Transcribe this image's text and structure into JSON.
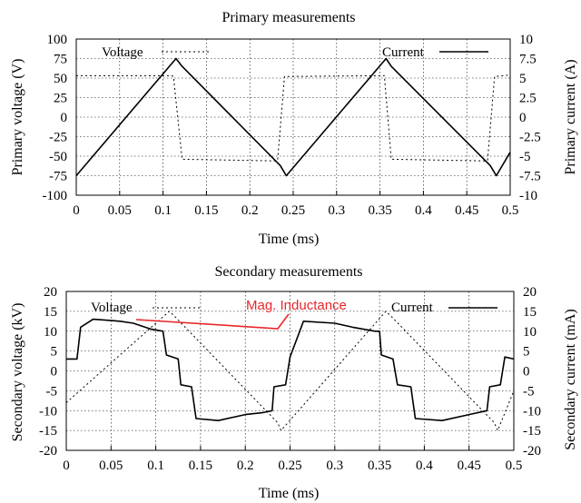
{
  "chart_data": [
    {
      "type": "line",
      "title": "Primary measurements",
      "xlabel": "Time (ms)",
      "ylabel": "Primary voltage (V)",
      "y2label": "Primary current (A)",
      "xlim": [
        0,
        0.5
      ],
      "ylim": [
        -100,
        100
      ],
      "y2lim": [
        -10,
        10
      ],
      "grid": true,
      "xticks": [
        "0",
        "0.05",
        "0.1",
        "0.15",
        "0.2",
        "0.25",
        "0.3",
        "0.35",
        "0.4",
        "0.45",
        "0.5"
      ],
      "yticks": [
        "100",
        "75",
        "50",
        "25",
        "0",
        "-25",
        "-50",
        "-75",
        "-100"
      ],
      "y2ticks": [
        "10",
        "7.5",
        "5",
        "2.5",
        "0",
        "-2.5",
        "-5",
        "-7.5",
        "-10"
      ],
      "legend_voltage": "Voltage",
      "legend_current": "Current",
      "series": [
        {
          "name": "Voltage",
          "axis": "left",
          "style": "dotted",
          "x": [
            0,
            0.11,
            0.112,
            0.122,
            0.229,
            0.232,
            0.24,
            0.352,
            0.355,
            0.363,
            0.47,
            0.474,
            0.482,
            0.5
          ],
          "y": [
            53,
            53,
            52,
            -54,
            -56,
            -55,
            52,
            53,
            53,
            -54,
            -56,
            -55,
            52,
            54
          ]
        },
        {
          "name": "Current",
          "axis": "right",
          "style": "solid",
          "x": [
            0,
            0.115,
            0.122,
            0.235,
            0.242,
            0.357,
            0.363,
            0.477,
            0.484,
            0.5
          ],
          "y": [
            -7.5,
            7.5,
            6.5,
            -6.2,
            -7.5,
            7.5,
            6.5,
            -6.2,
            -7.5,
            -4.5
          ]
        }
      ]
    },
    {
      "type": "line",
      "title": "Secondary measurements",
      "xlabel": "Time (ms)",
      "ylabel": "Secondary voltage (kV)",
      "y2label": "Secondary current (mA)",
      "xlim": [
        0,
        0.5
      ],
      "ylim": [
        -20,
        20
      ],
      "y2lim": [
        -20,
        20
      ],
      "grid": true,
      "xticks": [
        "0",
        "0.05",
        "0.1",
        "0.15",
        "0.2",
        "0.25",
        "0.3",
        "0.35",
        "0.4",
        "0.45",
        "0.5"
      ],
      "yticks": [
        "20",
        "15",
        "10",
        "5",
        "0",
        "-5",
        "-10",
        "-15",
        "-20"
      ],
      "y2ticks": [
        "20",
        "15",
        "10",
        "5",
        "0",
        "-5",
        "-10",
        "-15",
        "-20"
      ],
      "legend_voltage": "Voltage",
      "legend_current": "Current",
      "annotation": "Mag. Inductance",
      "series": [
        {
          "name": "Voltage",
          "axis": "left",
          "style": "solid",
          "x": [
            0,
            0.012,
            0.016,
            0.03,
            0.06,
            0.075,
            0.095,
            0.108,
            0.112,
            0.125,
            0.128,
            0.14,
            0.145,
            0.17,
            0.2,
            0.22,
            0.23,
            0.232,
            0.245,
            0.25,
            0.265,
            0.3,
            0.32,
            0.345,
            0.35,
            0.352,
            0.365,
            0.37,
            0.385,
            0.39,
            0.42,
            0.45,
            0.47,
            0.473,
            0.485,
            0.49,
            0.5
          ],
          "y": [
            3,
            3,
            11,
            13,
            12.5,
            12,
            10.5,
            10,
            4,
            3,
            -3.5,
            -4,
            -12,
            -12.5,
            -11,
            -10.5,
            -10,
            -4,
            -3.5,
            3.5,
            12.5,
            12,
            11,
            10,
            10,
            4,
            3,
            -3.5,
            -4,
            -12,
            -12.5,
            -11,
            -10,
            -4,
            -3.5,
            3.5,
            3
          ]
        },
        {
          "name": "Current",
          "axis": "right",
          "style": "dotted",
          "x": [
            0,
            0.115,
            0.12,
            0.236,
            0.24,
            0.357,
            0.362,
            0.478,
            0.482,
            0.5
          ],
          "y": [
            -8,
            15,
            14,
            -13,
            -15,
            15,
            14,
            -13,
            -15,
            -5
          ]
        }
      ]
    }
  ]
}
